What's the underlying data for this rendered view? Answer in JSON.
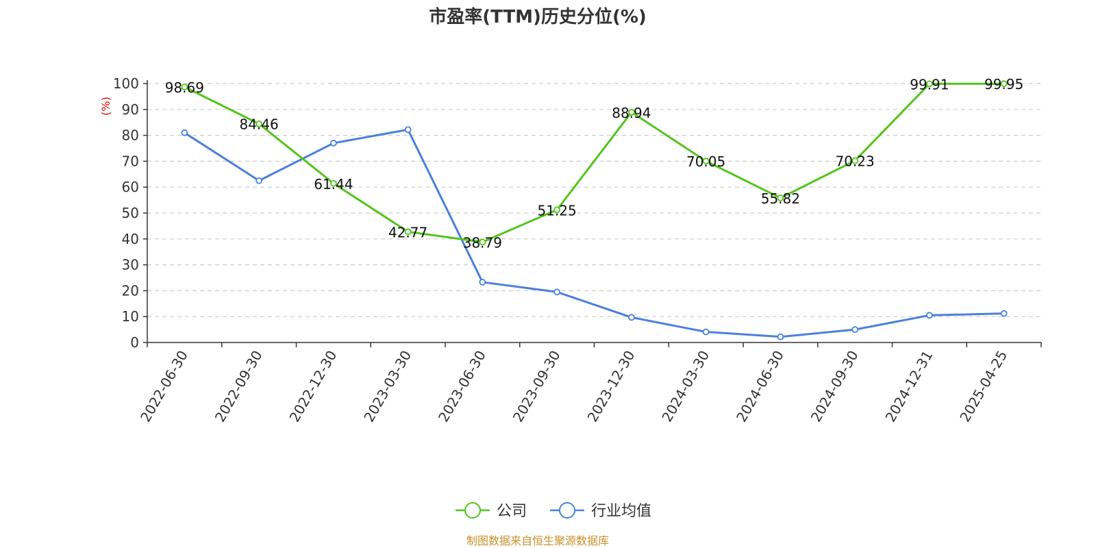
{
  "chart_data": {
    "type": "line",
    "title": "市盈率(TTM)历史分位(%)",
    "ylabel": "(%)",
    "categories": [
      "2022-06-30",
      "2022-09-30",
      "2022-12-30",
      "2023-03-30",
      "2023-06-30",
      "2023-09-30",
      "2023-12-30",
      "2024-03-30",
      "2024-06-30",
      "2024-09-30",
      "2024-12-31",
      "2025-04-25"
    ],
    "series": [
      {
        "name": "公司",
        "color": "#52c41a",
        "values": [
          98.69,
          84.46,
          61.44,
          42.77,
          38.79,
          51.25,
          88.94,
          70.05,
          55.82,
          70.23,
          99.91,
          99.95
        ],
        "data_labels": [
          "98.69",
          "84.46",
          "61.44",
          "42.77",
          "38.79",
          "51.25",
          "88.94",
          "70.05",
          "55.82",
          "70.23",
          "99.91",
          "99.95"
        ]
      },
      {
        "name": "行业均值",
        "color": "#4a7fdc",
        "values": [
          81.0,
          62.5,
          77.0,
          82.2,
          23.3,
          19.5,
          9.7,
          4.1,
          2.2,
          5.0,
          10.5,
          11.2
        ]
      }
    ],
    "ylim": [
      0,
      100
    ],
    "yticks": [
      "0",
      "10",
      "20",
      "30",
      "40",
      "50",
      "60",
      "70",
      "80",
      "90",
      "100"
    ],
    "grid": true,
    "legend_position": "bottom"
  },
  "footer": {
    "source": "制图数据来自恒生聚源数据库"
  }
}
